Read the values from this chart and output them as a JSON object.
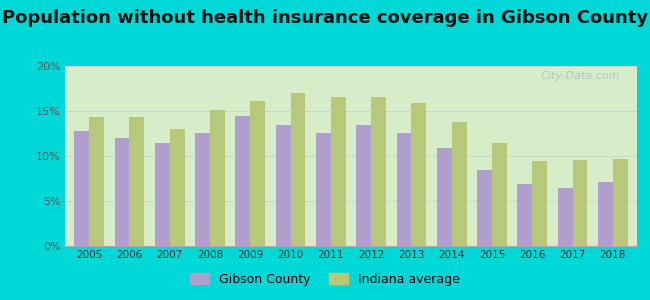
{
  "title": "Population without health insurance coverage in Gibson County",
  "years": [
    2005,
    2006,
    2007,
    2008,
    2009,
    2010,
    2011,
    2012,
    2013,
    2014,
    2015,
    2016,
    2017,
    2018
  ],
  "gibson_county": [
    12.8,
    12.0,
    11.4,
    12.6,
    14.5,
    13.4,
    12.6,
    13.4,
    12.6,
    10.9,
    8.4,
    6.9,
    6.5,
    7.1
  ],
  "indiana_avg": [
    14.3,
    14.3,
    13.0,
    15.1,
    16.1,
    17.0,
    16.6,
    16.6,
    15.9,
    13.8,
    11.5,
    9.5,
    9.6,
    9.7
  ],
  "gibson_color": "#b09fcc",
  "indiana_color": "#b8c87a",
  "background_outer": "#00d8d8",
  "background_inner_top": "#c8ede8",
  "background_inner_bottom": "#d8ecc8",
  "ylim": [
    0,
    20
  ],
  "yticks": [
    0,
    5,
    10,
    15,
    20
  ],
  "ytick_labels": [
    "0%",
    "5%",
    "10%",
    "15%",
    "20%"
  ],
  "legend_gibson": "Gibson County",
  "legend_indiana": "Indiana average",
  "title_fontsize": 13,
  "watermark": "City-Data.com"
}
